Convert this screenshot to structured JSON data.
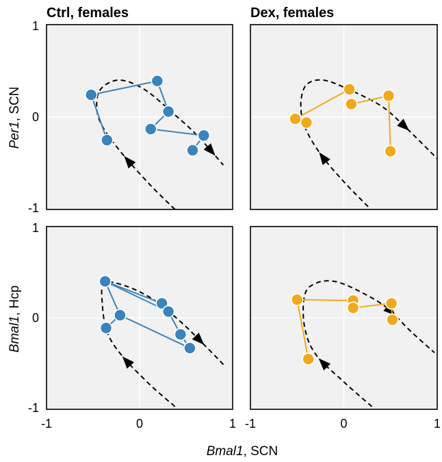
{
  "colors": {
    "ctrl": "#3a83bd",
    "dex": "#f2a81d",
    "panel_bg": "#f1f1f1",
    "grid": "#ffffff",
    "trajectory": "#000000"
  },
  "labels": {
    "col_ctrl": "Ctrl, females",
    "col_dex": "Dex, females",
    "ylabel_top_gene": "Per1",
    "ylabel_top_tissue": ", SCN",
    "ylabel_bottom_gene": "Bmal1",
    "ylabel_bottom_tissue": ", Hcp",
    "xlabel_gene": "Bmal1",
    "xlabel_tissue": ", SCN"
  },
  "ticks": {
    "x": [
      {
        "v": -1,
        "label": "-1"
      },
      {
        "v": 0,
        "label": "0"
      },
      {
        "v": 1,
        "label": "1"
      }
    ],
    "y": [
      {
        "v": -1,
        "label": "-1"
      },
      {
        "v": 0,
        "label": "0"
      },
      {
        "v": 1,
        "label": "1"
      }
    ]
  },
  "chart_data": [
    {
      "type": "scatter",
      "panel": "ctrl-top",
      "title": "Ctrl, females",
      "xlabel": "Bmal1, SCN",
      "ylabel": "Per1, SCN",
      "xlim": [
        -1,
        1
      ],
      "ylim": [
        -1,
        1
      ],
      "grid": true,
      "points": [
        {
          "x": -0.52,
          "y": 0.24
        },
        {
          "x": 0.19,
          "y": 0.39
        },
        {
          "x": 0.31,
          "y": 0.06
        },
        {
          "x": 0.12,
          "y": -0.13
        },
        {
          "x": 0.69,
          "y": -0.2
        },
        {
          "x": 0.57,
          "y": -0.36
        },
        {
          "x": -0.35,
          "y": -0.25
        }
      ],
      "path": [
        [
          6,
          0
        ],
        [
          0,
          1
        ],
        [
          1,
          2
        ],
        [
          2,
          3
        ],
        [
          3,
          4
        ],
        [
          4,
          5
        ]
      ],
      "reference_curve": [
        [
          0.38,
          -1.0
        ],
        [
          0.1,
          -0.72
        ],
        [
          -0.2,
          -0.38
        ],
        [
          -0.4,
          -0.1
        ],
        [
          -0.46,
          0.1
        ],
        [
          -0.42,
          0.3
        ],
        [
          -0.22,
          0.4
        ],
        [
          0.05,
          0.3
        ],
        [
          0.35,
          0.05
        ],
        [
          0.62,
          -0.2
        ],
        [
          0.9,
          -0.52
        ]
      ],
      "arrows": [
        0.22,
        0.94
      ]
    },
    {
      "type": "scatter",
      "panel": "dex-top",
      "title": "Dex, females",
      "xlabel": "Bmal1, SCN",
      "ylabel": "Per1, SCN",
      "xlim": [
        -1,
        1
      ],
      "ylim": [
        -1,
        1
      ],
      "grid": true,
      "points": [
        {
          "x": -0.52,
          "y": -0.02
        },
        {
          "x": -0.4,
          "y": -0.06
        },
        {
          "x": 0.06,
          "y": 0.3
        },
        {
          "x": 0.08,
          "y": 0.14
        },
        {
          "x": 0.48,
          "y": 0.23
        },
        {
          "x": 0.5,
          "y": -0.37
        }
      ],
      "path": [
        [
          0,
          2
        ],
        [
          3,
          4
        ],
        [
          4,
          5
        ]
      ],
      "reference_curve": [
        [
          0.26,
          -0.97
        ],
        [
          0.0,
          -0.7
        ],
        [
          -0.25,
          -0.4
        ],
        [
          -0.42,
          -0.1
        ],
        [
          -0.46,
          0.15
        ],
        [
          -0.4,
          0.35
        ],
        [
          -0.22,
          0.4
        ],
        [
          0.05,
          0.3
        ],
        [
          0.4,
          0.12
        ],
        [
          0.65,
          -0.1
        ],
        [
          1.0,
          -0.45
        ]
      ],
      "arrows": [
        0.22,
        0.85
      ]
    },
    {
      "type": "scatter",
      "panel": "ctrl-bottom",
      "title": "Ctrl, females",
      "xlabel": "Bmal1, SCN",
      "ylabel": "Bmal1, Hcp",
      "xlim": [
        -1,
        1
      ],
      "ylim": [
        -1,
        1
      ],
      "grid": true,
      "points": [
        {
          "x": -0.37,
          "y": 0.4
        },
        {
          "x": 0.24,
          "y": 0.16
        },
        {
          "x": 0.31,
          "y": 0.07
        },
        {
          "x": 0.44,
          "y": -0.18
        },
        {
          "x": 0.54,
          "y": -0.33
        },
        {
          "x": -0.21,
          "y": 0.03
        },
        {
          "x": -0.36,
          "y": -0.11
        }
      ],
      "path": [
        [
          5,
          0
        ],
        [
          0,
          1
        ],
        [
          0,
          2
        ],
        [
          2,
          3
        ],
        [
          3,
          4
        ],
        [
          4,
          5
        ],
        [
          5,
          6
        ]
      ],
      "reference_curve": [
        [
          0.38,
          -0.97
        ],
        [
          0.1,
          -0.72
        ],
        [
          -0.2,
          -0.4
        ],
        [
          -0.35,
          -0.15
        ],
        [
          -0.4,
          0.15
        ],
        [
          -0.38,
          0.38
        ],
        [
          -0.15,
          0.35
        ],
        [
          0.15,
          0.2
        ],
        [
          0.45,
          -0.05
        ],
        [
          0.7,
          -0.3
        ],
        [
          0.92,
          -0.53
        ]
      ],
      "arrows": [
        0.22,
        0.88
      ]
    },
    {
      "type": "scatter",
      "panel": "dex-bottom",
      "title": "Dex, females",
      "xlabel": "Bmal1, SCN",
      "ylabel": "Bmal1, Hcp",
      "xlim": [
        -1,
        1
      ],
      "ylim": [
        -1,
        1
      ],
      "grid": true,
      "points": [
        {
          "x": -0.5,
          "y": 0.2
        },
        {
          "x": -0.38,
          "y": -0.45
        },
        {
          "x": 0.1,
          "y": 0.19
        },
        {
          "x": 0.1,
          "y": 0.11
        },
        {
          "x": 0.51,
          "y": 0.16
        },
        {
          "x": 0.52,
          "y": -0.02
        }
      ],
      "path": [
        [
          1,
          0
        ],
        [
          0,
          2
        ],
        [
          3,
          4
        ],
        [
          4,
          5
        ]
      ],
      "reference_curve": [
        [
          0.3,
          -0.97
        ],
        [
          0.0,
          -0.7
        ],
        [
          -0.3,
          -0.4
        ],
        [
          -0.42,
          -0.1
        ],
        [
          -0.42,
          0.25
        ],
        [
          -0.3,
          0.38
        ],
        [
          -0.1,
          0.4
        ],
        [
          0.15,
          0.3
        ],
        [
          0.45,
          0.12
        ],
        [
          0.72,
          -0.15
        ],
        [
          0.97,
          -0.38
        ]
      ],
      "arrows": [
        0.22,
        0.8
      ]
    }
  ]
}
